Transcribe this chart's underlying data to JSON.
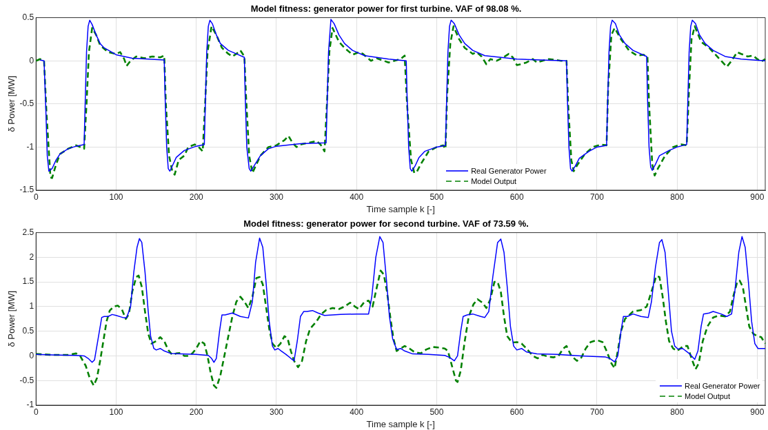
{
  "chart_data": [
    {
      "type": "line",
      "title": "Model fitness: generator power for first turbine. VAF of 98.08 %.",
      "xlabel": "Time sample k [-]",
      "ylabel": "δ Power [MW]",
      "xlim": [
        0,
        910
      ],
      "xticks": [
        0,
        100,
        200,
        300,
        400,
        500,
        600,
        700,
        800,
        900
      ],
      "ylim": [
        -1.5,
        0.5
      ],
      "yticks": [
        -1.5,
        -1,
        -0.5,
        0,
        0.5
      ],
      "grid": true,
      "legend": "bottom",
      "marker": "none",
      "series": [
        {
          "name": "Real Generator Power",
          "color": "#0000ff",
          "line_style": "solid",
          "x": [
            5,
            10,
            12,
            14,
            16,
            20,
            25,
            30,
            40,
            50,
            60,
            61,
            63,
            65,
            67,
            70,
            75,
            80,
            85,
            100,
            120,
            140,
            160,
            161,
            163,
            165,
            167,
            170,
            175,
            185,
            200,
            210,
            211,
            213,
            215,
            217,
            220,
            225,
            230,
            240,
            250,
            260,
            261,
            263,
            266,
            268,
            272,
            280,
            290,
            300,
            330,
            362,
            363,
            365,
            368,
            372,
            378,
            385,
            395,
            410,
            440,
            462,
            463,
            465,
            467,
            469,
            473,
            478,
            485,
            500,
            511,
            512,
            514,
            516,
            518,
            522,
            528,
            535,
            545,
            560,
            600,
            630,
            662,
            663,
            665,
            667,
            669,
            673,
            678,
            690,
            700,
            712,
            713,
            715,
            717,
            719,
            723,
            728,
            735,
            745,
            762,
            763,
            765,
            767,
            769,
            773,
            778,
            790,
            800,
            812,
            813,
            815,
            817,
            819,
            823,
            828,
            835,
            845,
            860,
            880,
            910
          ],
          "values": [
            0.01,
            0.0,
            -0.5,
            -1.1,
            -1.28,
            -1.25,
            -1.15,
            -1.08,
            -1.02,
            -0.99,
            -0.97,
            -0.6,
            0.1,
            0.4,
            0.47,
            0.42,
            0.3,
            0.2,
            0.15,
            0.07,
            0.03,
            0.02,
            0.01,
            -0.4,
            -1.0,
            -1.25,
            -1.28,
            -1.22,
            -1.12,
            -1.04,
            -0.99,
            -0.97,
            -0.6,
            0.1,
            0.4,
            0.47,
            0.43,
            0.3,
            0.2,
            0.12,
            0.08,
            0.04,
            -0.4,
            -1.0,
            -1.25,
            -1.28,
            -1.22,
            -1.1,
            -1.02,
            -0.99,
            -0.96,
            -0.95,
            -0.6,
            0.1,
            0.48,
            0.43,
            0.3,
            0.2,
            0.12,
            0.06,
            0.02,
            0.0,
            -0.4,
            -1.0,
            -1.25,
            -1.28,
            -1.22,
            -1.12,
            -1.05,
            -1.0,
            -0.98,
            -0.6,
            0.1,
            0.4,
            0.47,
            0.43,
            0.3,
            0.2,
            0.12,
            0.06,
            0.02,
            0.01,
            0.0,
            -0.4,
            -1.0,
            -1.25,
            -1.28,
            -1.22,
            -1.13,
            -1.05,
            -1.0,
            -0.98,
            -0.6,
            0.1,
            0.4,
            0.47,
            0.43,
            0.3,
            0.2,
            0.12,
            0.05,
            -0.4,
            -1.0,
            -1.23,
            -1.27,
            -1.2,
            -1.1,
            -1.04,
            -1.0,
            -0.97,
            -0.6,
            0.1,
            0.4,
            0.47,
            0.43,
            0.3,
            0.2,
            0.12,
            0.05,
            0.02,
            0.0
          ]
        },
        {
          "name": "Model Output",
          "color": "#008000",
          "line_style": "dashed",
          "x": [
            0,
            5,
            10,
            13,
            18,
            20,
            25,
            30,
            40,
            50,
            60,
            63,
            66,
            70,
            75,
            80,
            90,
            100,
            105,
            110,
            113,
            118,
            125,
            135,
            145,
            155,
            160,
            162,
            166,
            170,
            173,
            178,
            185,
            190,
            198,
            203,
            208,
            211,
            214,
            219,
            225,
            232,
            240,
            245,
            250,
            255,
            260,
            262,
            266,
            270,
            275,
            280,
            290,
            300,
            310,
            315,
            320,
            325,
            330,
            340,
            350,
            355,
            360,
            363,
            366,
            370,
            378,
            385,
            395,
            403,
            408,
            418,
            425,
            440,
            455,
            460,
            463,
            468,
            472,
            475,
            480,
            490,
            500,
            508,
            511,
            513,
            517,
            521,
            528,
            535,
            545,
            550,
            556,
            562,
            567,
            575,
            585,
            590,
            595,
            600,
            605,
            612,
            620,
            625,
            632,
            640,
            648,
            655,
            662,
            664,
            668,
            671,
            676,
            685,
            695,
            705,
            712,
            714,
            718,
            722,
            730,
            740,
            750,
            758,
            763,
            765,
            769,
            772,
            776,
            785,
            795,
            805,
            812,
            815,
            818,
            822,
            830,
            840,
            850,
            857,
            862,
            868,
            875,
            880,
            888,
            895,
            900,
            905,
            910
          ],
          "values": [
            0.0,
            0.02,
            0.0,
            -0.6,
            -1.35,
            -1.36,
            -1.2,
            -1.08,
            -1.02,
            -0.98,
            -1.02,
            -0.5,
            0.1,
            0.38,
            0.3,
            0.18,
            0.1,
            0.08,
            0.1,
            0.02,
            -0.06,
            0.0,
            0.05,
            0.03,
            0.05,
            0.04,
            0.06,
            -0.5,
            -1.1,
            -1.28,
            -1.32,
            -1.15,
            -1.1,
            -1.0,
            -0.97,
            -1.0,
            -1.05,
            -0.5,
            0.1,
            0.4,
            0.3,
            0.15,
            0.08,
            0.05,
            0.08,
            0.12,
            0.05,
            -0.4,
            -1.1,
            -1.3,
            -1.2,
            -1.1,
            -1.0,
            -0.98,
            -0.92,
            -0.87,
            -0.95,
            -1.0,
            -0.97,
            -0.95,
            -0.93,
            -0.97,
            -1.05,
            -0.5,
            0.1,
            0.38,
            0.22,
            0.15,
            0.07,
            0.1,
            0.08,
            0.0,
            0.03,
            -0.02,
            0.02,
            0.06,
            -0.5,
            -1.15,
            -1.3,
            -1.29,
            -1.2,
            -1.05,
            -1.0,
            -0.98,
            -1.02,
            -0.4,
            0.2,
            0.4,
            0.25,
            0.15,
            0.08,
            0.1,
            0.05,
            -0.04,
            0.02,
            0.0,
            0.05,
            0.08,
            0.04,
            -0.05,
            -0.04,
            -0.02,
            0.02,
            -0.02,
            0.0,
            0.02,
            0.01,
            0.0,
            0.0,
            -0.5,
            -1.15,
            -1.28,
            -1.2,
            -1.08,
            -1.0,
            -0.97,
            -0.98,
            -0.3,
            0.3,
            0.38,
            0.25,
            0.12,
            0.06,
            0.07,
            0.05,
            -0.5,
            -1.2,
            -1.33,
            -1.25,
            -1.1,
            -1.0,
            -0.97,
            -0.98,
            -0.3,
            0.25,
            0.4,
            0.22,
            0.15,
            0.05,
            -0.02,
            -0.07,
            0.0,
            0.1,
            0.08,
            0.05,
            0.06,
            0.02,
            -0.01,
            0.02
          ]
        }
      ]
    },
    {
      "type": "line",
      "title": "Model fitness: generator power for second turbine. VAF of 73.59 %.",
      "xlabel": "Time sample k [-]",
      "ylabel": "δ Power [MW]",
      "xlim": [
        0,
        910
      ],
      "xticks": [
        0,
        100,
        200,
        300,
        400,
        500,
        600,
        700,
        800,
        900
      ],
      "ylim": [
        -1,
        2.5
      ],
      "yticks": [
        -1,
        -0.5,
        0,
        0.5,
        1,
        1.5,
        2,
        2.5
      ],
      "grid": true,
      "legend": "bottom right",
      "marker": "none",
      "series": [
        {
          "name": "Real Generator Power",
          "color": "#0000ff",
          "line_style": "solid",
          "x": [
            0,
            20,
            50,
            60,
            65,
            70,
            73,
            78,
            82,
            85,
            90,
            95,
            100,
            108,
            113,
            118,
            122,
            126,
            129,
            132,
            136,
            140,
            143,
            147,
            150,
            155,
            160,
            168,
            180,
            200,
            215,
            219,
            222,
            225,
            229,
            232,
            236,
            245,
            255,
            265,
            270,
            274,
            279,
            283,
            287,
            291,
            295,
            298,
            302,
            306,
            312,
            318,
            322,
            326,
            330,
            334,
            338,
            345,
            352,
            360,
            380,
            400,
            415,
            419,
            424,
            429,
            433,
            437,
            441,
            445,
            450,
            455,
            460,
            470,
            490,
            510,
            516,
            522,
            526,
            530,
            533,
            538,
            545,
            555,
            560,
            565,
            570,
            576,
            580,
            584,
            588,
            592,
            596,
            600,
            606,
            612,
            625,
            650,
            680,
            710,
            716,
            722,
            726,
            730,
            733,
            738,
            745,
            755,
            764,
            768,
            773,
            778,
            781,
            785,
            789,
            793,
            797,
            801,
            807,
            815,
            822,
            826,
            830,
            833,
            840,
            845,
            855,
            862,
            868,
            872,
            877,
            881,
            885,
            889,
            893,
            897,
            901,
            905,
            910
          ],
          "values": [
            0.03,
            0.02,
            0.01,
            0.0,
            -0.05,
            -0.13,
            -0.08,
            0.4,
            0.78,
            0.8,
            0.8,
            0.84,
            0.82,
            0.78,
            0.77,
            1.0,
            1.7,
            2.2,
            2.38,
            2.3,
            1.7,
            0.9,
            0.4,
            0.15,
            0.12,
            0.15,
            0.1,
            0.05,
            0.04,
            0.03,
            0.01,
            -0.05,
            -0.13,
            -0.05,
            0.5,
            0.83,
            0.83,
            0.87,
            0.8,
            0.77,
            1.1,
            1.9,
            2.39,
            2.2,
            1.5,
            0.7,
            0.2,
            0.12,
            0.15,
            0.1,
            0.03,
            -0.05,
            -0.1,
            0.3,
            0.8,
            0.9,
            0.9,
            0.92,
            0.87,
            0.82,
            0.84,
            0.85,
            0.85,
            1.2,
            2.0,
            2.42,
            2.3,
            1.6,
            0.8,
            0.35,
            0.13,
            0.15,
            0.1,
            0.04,
            0.03,
            0.01,
            -0.03,
            -0.1,
            0.0,
            0.5,
            0.8,
            0.83,
            0.85,
            0.8,
            0.78,
            0.9,
            1.6,
            2.3,
            2.37,
            2.1,
            1.4,
            0.6,
            0.2,
            0.12,
            0.15,
            0.08,
            0.04,
            0.03,
            0.0,
            -0.02,
            -0.05,
            -0.12,
            0.0,
            0.5,
            0.8,
            0.8,
            0.85,
            0.8,
            0.78,
            1.1,
            1.8,
            2.3,
            2.36,
            2.1,
            1.3,
            0.5,
            0.2,
            0.14,
            0.15,
            0.05,
            -0.07,
            0.1,
            0.6,
            0.85,
            0.87,
            0.9,
            0.85,
            0.8,
            0.85,
            1.3,
            2.1,
            2.42,
            2.2,
            1.5,
            0.7,
            0.25,
            0.15,
            0.15,
            0.15
          ]
        },
        {
          "name": "Model Output",
          "color": "#008000",
          "line_style": "dashed",
          "x": [
            0,
            20,
            40,
            50,
            55,
            62,
            67,
            72,
            76,
            80,
            84,
            88,
            92,
            97,
            102,
            107,
            112,
            116,
            120,
            125,
            128,
            132,
            136,
            140,
            144,
            150,
            155,
            160,
            165,
            170,
            175,
            180,
            185,
            190,
            195,
            200,
            205,
            210,
            214,
            218,
            222,
            225,
            230,
            235,
            240,
            245,
            250,
            255,
            260,
            265,
            270,
            275,
            279,
            283,
            287,
            291,
            295,
            300,
            305,
            310,
            314,
            318,
            322,
            327,
            332,
            337,
            342,
            350,
            356,
            362,
            370,
            378,
            385,
            392,
            398,
            403,
            410,
            415,
            420,
            424,
            430,
            434,
            438,
            442,
            446,
            450,
            455,
            460,
            466,
            472,
            480,
            487,
            495,
            502,
            510,
            514,
            519,
            524,
            526,
            530,
            535,
            540,
            546,
            551,
            557,
            562,
            567,
            572,
            576,
            580,
            584,
            588,
            594,
            600,
            606,
            612,
            620,
            626,
            632,
            640,
            646,
            652,
            658,
            662,
            668,
            675,
            680,
            686,
            692,
            700,
            707,
            712,
            718,
            722,
            726,
            730,
            735,
            745,
            755,
            762,
            768,
            774,
            778,
            782,
            786,
            790,
            795,
            800,
            808,
            813,
            818,
            823,
            827,
            832,
            838,
            845,
            852,
            860,
            866,
            870,
            875,
            878,
            882,
            886,
            890,
            895,
            900,
            905,
            910
          ],
          "values": [
            0.04,
            0.02,
            0.02,
            0.05,
            0.0,
            -0.2,
            -0.45,
            -0.6,
            -0.45,
            -0.1,
            0.3,
            0.7,
            0.92,
            1.0,
            1.02,
            0.95,
            0.75,
            0.85,
            1.3,
            1.6,
            1.63,
            1.4,
            0.9,
            0.45,
            0.25,
            0.3,
            0.38,
            0.3,
            0.12,
            0.02,
            0.05,
            0.06,
            0.0,
            0.0,
            0.05,
            0.15,
            0.3,
            0.25,
            0.0,
            -0.35,
            -0.6,
            -0.65,
            -0.4,
            0.0,
            0.4,
            0.8,
            1.1,
            1.2,
            1.1,
            0.97,
            1.2,
            1.58,
            1.6,
            1.45,
            1.0,
            0.55,
            0.25,
            0.16,
            0.25,
            0.4,
            0.35,
            0.1,
            -0.1,
            -0.23,
            -0.1,
            0.3,
            0.55,
            0.7,
            0.85,
            0.93,
            0.97,
            0.95,
            1.0,
            1.08,
            1.0,
            0.95,
            1.1,
            1.12,
            1.0,
            1.3,
            1.73,
            1.65,
            1.3,
            0.8,
            0.35,
            0.1,
            0.15,
            0.2,
            0.15,
            0.08,
            0.05,
            0.13,
            0.18,
            0.17,
            0.15,
            0.1,
            -0.2,
            -0.5,
            -0.53,
            -0.3,
            0.3,
            0.8,
            1.05,
            1.15,
            1.08,
            0.97,
            1.15,
            1.5,
            1.5,
            1.3,
            0.8,
            0.4,
            0.27,
            0.28,
            0.25,
            0.15,
            0.0,
            -0.05,
            0.02,
            -0.02,
            -0.03,
            0.0,
            0.15,
            0.2,
            0.0,
            -0.1,
            -0.05,
            0.15,
            0.28,
            0.32,
            0.28,
            0.1,
            -0.15,
            -0.25,
            0.1,
            0.5,
            0.75,
            0.9,
            0.93,
            1.0,
            1.3,
            1.62,
            1.6,
            1.2,
            0.7,
            0.3,
            0.15,
            0.1,
            0.2,
            0.2,
            -0.05,
            -0.27,
            -0.15,
            0.3,
            0.6,
            0.78,
            0.82,
            0.8,
            0.9,
            1.2,
            1.5,
            1.53,
            1.4,
            1.0,
            0.6,
            0.45,
            0.4,
            0.38,
            0.25
          ]
        }
      ]
    }
  ]
}
